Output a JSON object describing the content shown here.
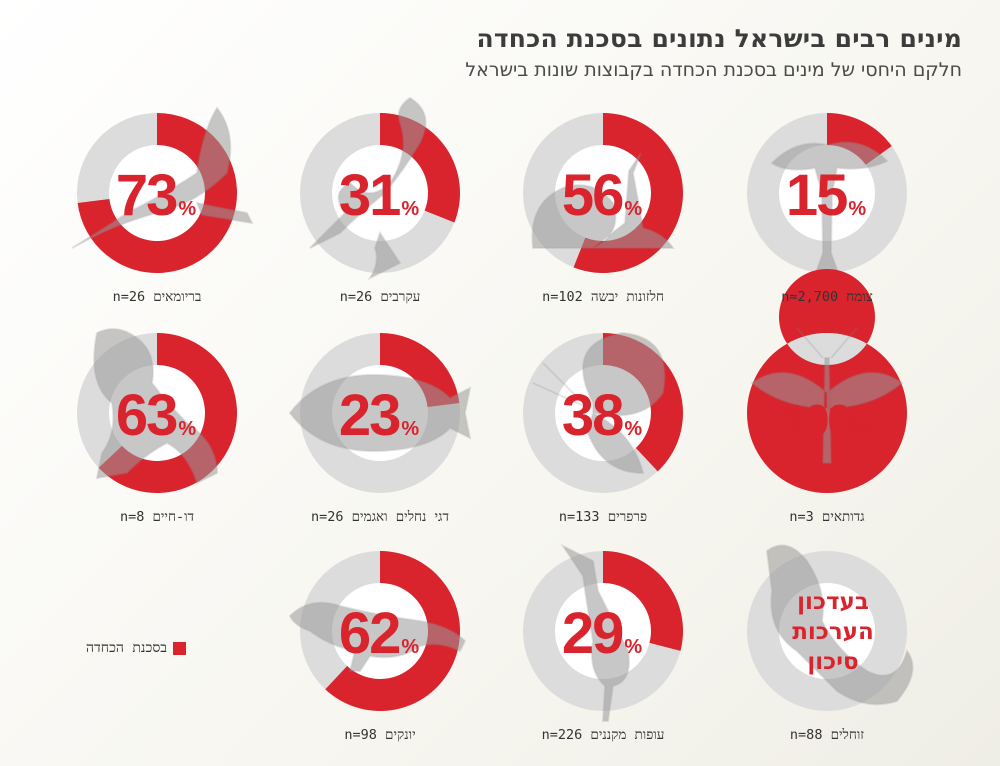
{
  "header": {
    "title": "מינים רבים בישראל נתונים בסכנת הכחדה",
    "subtitle": "חלקם היחסי של מינים בסכנת הכחדה בקבוצות שונות בישראל"
  },
  "legend": {
    "label": "בסכנת הכחדה"
  },
  "colors": {
    "threatened": "#d9232d",
    "ring": "#dcdcdc",
    "inner": "#ffffff"
  },
  "chart_data": {
    "type": "pie",
    "percent_suffix": "%",
    "series": [
      {
        "name": "צומח",
        "n": "n≈2,700",
        "value": 15,
        "icon": "acacia-tree-icon"
      },
      {
        "name": "חלזונות יבשה",
        "n": "n=102",
        "value": 56,
        "icon": "snail-icon"
      },
      {
        "name": "עקרבים",
        "n": "n=26",
        "value": 31,
        "icon": "scorpion-icon"
      },
      {
        "name": "בריומאים",
        "n": "n=26",
        "value": 73,
        "icon": "lizard-tail-icon"
      },
      {
        "name": "גדותאים",
        "n": "n=3",
        "value": 100,
        "icon": "mayfly-icon"
      },
      {
        "name": "פרפרים",
        "n": "n=133",
        "value": 38,
        "icon": "butterfly-icon"
      },
      {
        "name": "דגי נחלים ואגמים",
        "n": "n=26",
        "value": 23,
        "icon": "fish-icon"
      },
      {
        "name": "דו-חיים",
        "n": "n=8",
        "value": 63,
        "icon": "frog-icon"
      },
      {
        "name": "זוחלים",
        "n": "n=88",
        "value": null,
        "center_text": [
          "בעדכון",
          "הערכות",
          "סיכון"
        ],
        "icon": "lizard-icon"
      },
      {
        "name": "עופות מקננים",
        "n": "n=226",
        "value": 29,
        "icon": "heron-icon"
      },
      {
        "name": "יונקים",
        "n": "n=98",
        "value": 62,
        "icon": "mongoose-icon"
      }
    ]
  }
}
